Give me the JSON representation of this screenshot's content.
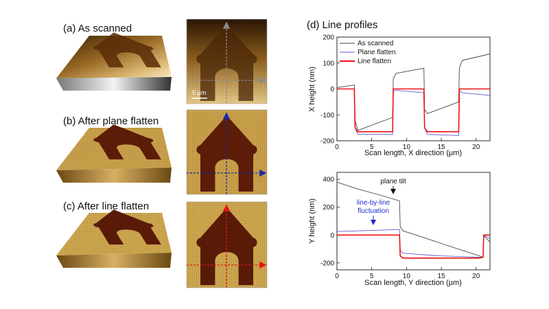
{
  "panels": {
    "a": "(a) As scanned",
    "b": "(b) After plane flatten",
    "c": "(c) After line flatten",
    "d": "(d) Line profiles"
  },
  "scale_bar": "5 μm",
  "colors": {
    "as_scanned": "#444444",
    "plane_flatten": "#5b5bd6",
    "line_flatten": "#ee1111",
    "plane_tilt_arrow": "#111111",
    "fluctuation_arrow": "#1f2ad0",
    "trench": "#5a1a08",
    "surface": "#c79a3c"
  },
  "chart_data": [
    {
      "type": "line",
      "title": "",
      "xlabel": "Scan length, X direction (μm)",
      "ylabel": "X height (nm)",
      "xlim": [
        0,
        22
      ],
      "ylim": [
        -200,
        200
      ],
      "xticks": [
        0,
        5,
        10,
        15,
        20
      ],
      "yticks": [
        -200,
        -100,
        0,
        100,
        200
      ],
      "legend": [
        "As scanned",
        "Plane flatten",
        "Line flatten"
      ],
      "legend_position": "top-left",
      "series": [
        {
          "name": "As scanned",
          "x": [
            0,
            2.5,
            2.6,
            3.0,
            8.0,
            8.1,
            8.5,
            12.5,
            12.6,
            13.0,
            17.5,
            17.6,
            18.0,
            22
          ],
          "y": [
            5,
            15,
            -120,
            -160,
            -110,
            40,
            60,
            80,
            -80,
            -95,
            -50,
            80,
            110,
            135
          ]
        },
        {
          "name": "Plane flatten",
          "x": [
            0,
            2.5,
            2.6,
            3.0,
            8.0,
            8.1,
            8.5,
            12.5,
            12.6,
            13.0,
            17.5,
            17.6,
            18.0,
            22
          ],
          "y": [
            0,
            0,
            -150,
            -175,
            -175,
            -10,
            -5,
            -15,
            -150,
            -175,
            -180,
            -5,
            -15,
            -25
          ]
        },
        {
          "name": "Line flatten",
          "x": [
            0,
            2.5,
            2.6,
            3.0,
            8.0,
            8.1,
            8.5,
            12.5,
            12.6,
            13.0,
            17.5,
            17.6,
            18.0,
            22
          ],
          "y": [
            0,
            0,
            -150,
            -165,
            -165,
            0,
            0,
            0,
            -150,
            -165,
            -165,
            0,
            0,
            0
          ]
        }
      ]
    },
    {
      "type": "line",
      "title": "",
      "xlabel": "Scan length, Y direction (μm)",
      "ylabel": "Y height (nm)",
      "xlim": [
        0,
        22
      ],
      "ylim": [
        -250,
        450
      ],
      "xticks": [
        0,
        5,
        10,
        15,
        20
      ],
      "yticks": [
        -200,
        0,
        200,
        400
      ],
      "annotations": [
        {
          "text": "plane tilt",
          "x": 8.7,
          "y": 250
        },
        {
          "text": "line-by-line",
          "x": 4.8,
          "y": 25
        },
        {
          "text": "fluctuation",
          "x": 4.8,
          "y": 25
        }
      ],
      "series": [
        {
          "name": "As scanned",
          "x": [
            0,
            3,
            6,
            9,
            9.1,
            9.5,
            12,
            15,
            18,
            20.5,
            21,
            21.1,
            22
          ],
          "y": [
            380,
            330,
            290,
            245,
            60,
            30,
            -10,
            -60,
            -110,
            -150,
            -160,
            -5,
            -50
          ]
        },
        {
          "name": "Plane flatten",
          "x": [
            0,
            3,
            6,
            9,
            9.1,
            9.5,
            12,
            15,
            18,
            20.5,
            21,
            21.1,
            22
          ],
          "y": [
            25,
            30,
            35,
            40,
            -110,
            -130,
            -140,
            -150,
            -155,
            -160,
            -160,
            0,
            -25
          ]
        },
        {
          "name": "Line flatten",
          "x": [
            0,
            3,
            6,
            9,
            9.1,
            9.5,
            12,
            15,
            18,
            20.5,
            21,
            21.1,
            22
          ],
          "y": [
            0,
            0,
            0,
            0,
            -150,
            -165,
            -165,
            -165,
            -165,
            -165,
            -160,
            0,
            0
          ]
        }
      ]
    }
  ]
}
